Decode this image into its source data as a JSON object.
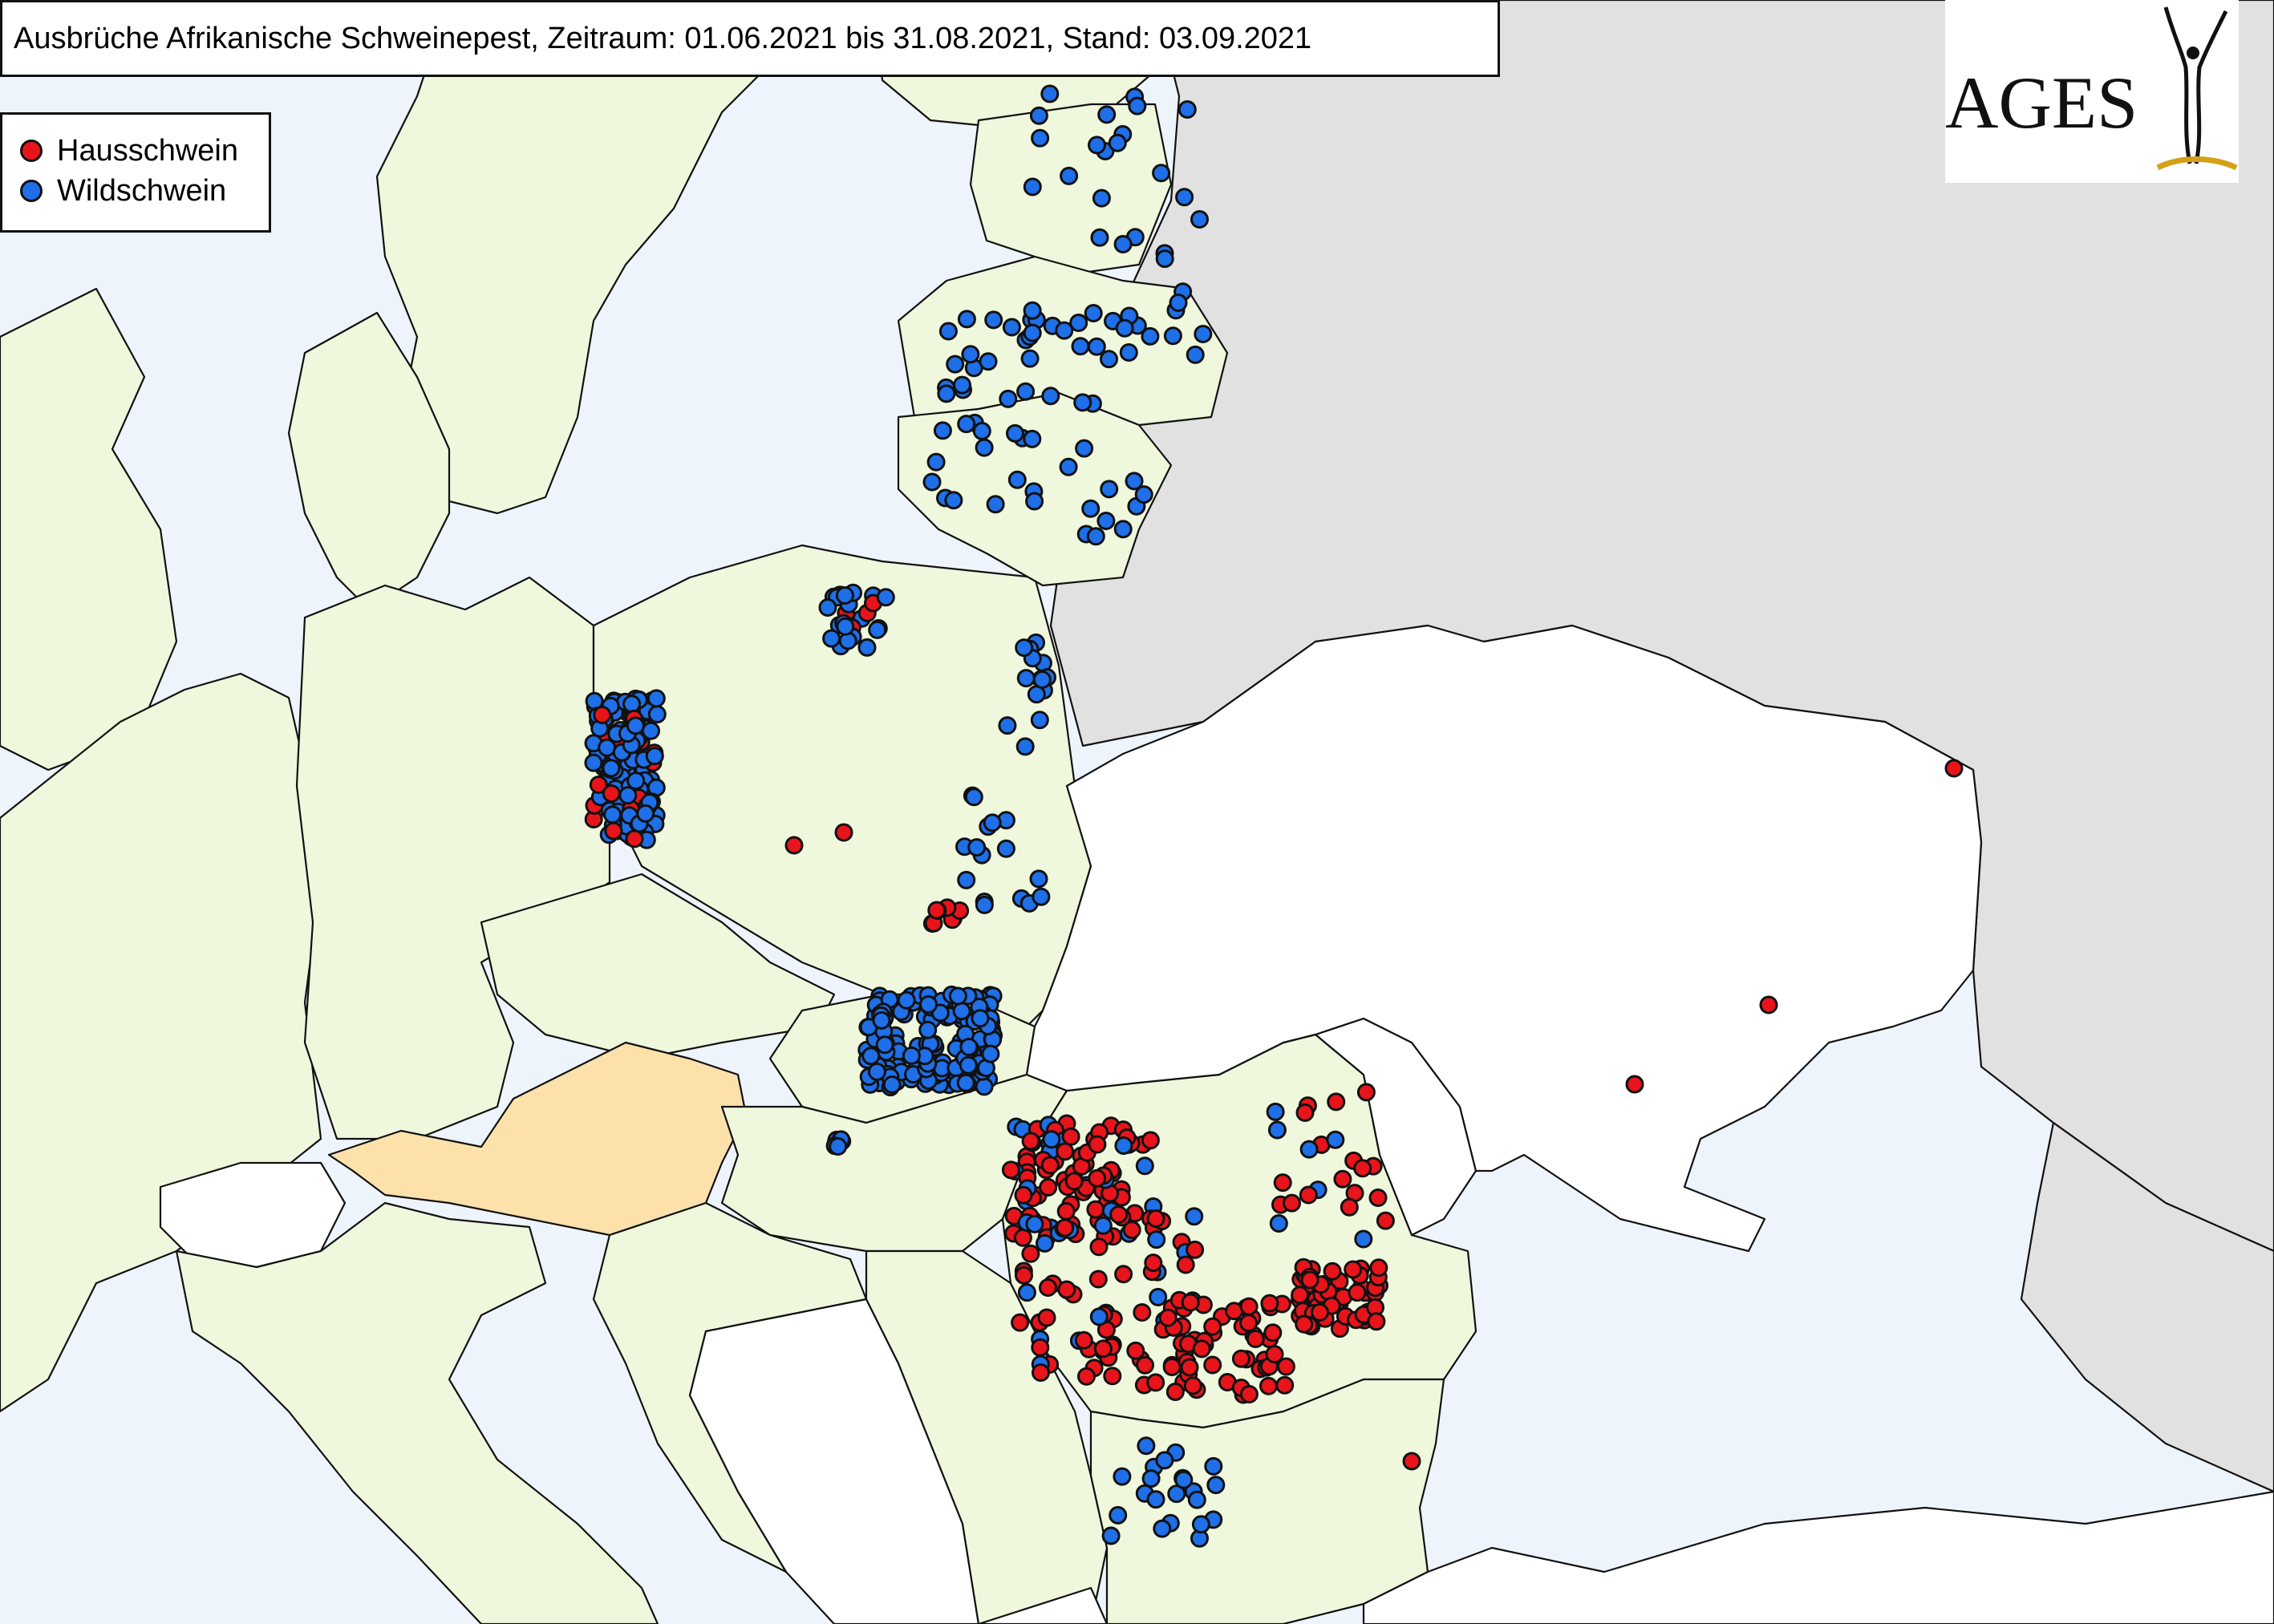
{
  "map_title": "Ausbrüche Afrikanische Schweinepest, Zeitraum: 01.06.2021 bis 31.08.2021, Stand: 03.09.2021",
  "logo": {
    "text": "AGES"
  },
  "legend": {
    "items": [
      {
        "label": "Hausschwein",
        "color": "#e8141b"
      },
      {
        "label": "Wildschwein",
        "color": "#1e6fe8"
      }
    ]
  },
  "colors": {
    "sea": "#eef4fb",
    "affected_country": "#eff7dc",
    "austria": "#fde1ab",
    "unaffected_country": "#ffffff",
    "outside_region": "#e1e1e1",
    "border": "#111111"
  },
  "regions": {
    "affected": [
      "Estland",
      "Lettland",
      "Litauen",
      "Polen",
      "Deutschland",
      "Slowakei",
      "Ungarn",
      "Rumänien",
      "Bulgarien",
      "Serbien"
    ],
    "highlighted": [
      "Österreich"
    ]
  }
}
